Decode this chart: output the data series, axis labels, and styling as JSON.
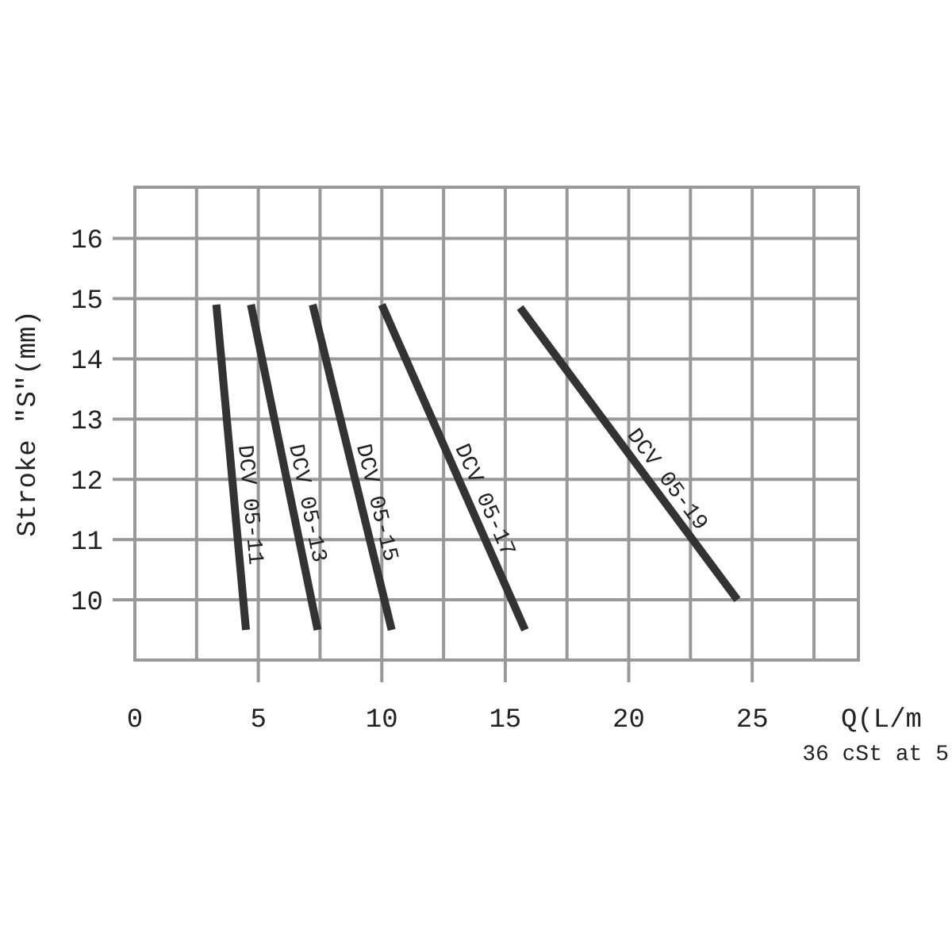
{
  "chart_data": {
    "type": "line",
    "xlabel": "Q(L/m",
    "ylabel": "Stroke \"S\"(mm)",
    "annotations": [
      "36 cSt at 5"
    ],
    "xlim": [
      0,
      29.3
    ],
    "ylim": [
      9,
      16.85
    ],
    "xticks": [
      0,
      {
        "value": 2.5,
        "label": null
      },
      5,
      {
        "value": 7.5,
        "label": null
      },
      10,
      {
        "value": 12.5,
        "label": null
      },
      15,
      {
        "value": 17.5,
        "label": null
      },
      20,
      {
        "value": 22.5,
        "label": null
      },
      25,
      {
        "value": 27.5,
        "label": null
      }
    ],
    "yticks": [
      10,
      11,
      12,
      13,
      14,
      15,
      16
    ],
    "grid": true,
    "marker": "none",
    "line_style": "solid",
    "series": [
      {
        "name": "DCV 05-11",
        "color": "#333333",
        "x": [
          3.3,
          4.5
        ],
        "values": [
          14.9,
          9.5
        ]
      },
      {
        "name": "DCV 05-13",
        "color": "#333333",
        "x": [
          4.7,
          7.4
        ],
        "values": [
          14.9,
          9.5
        ]
      },
      {
        "name": "DCV 05-15",
        "color": "#333333",
        "x": [
          7.2,
          10.4
        ],
        "values": [
          14.9,
          9.5
        ]
      },
      {
        "name": "DCV 05-17",
        "color": "#333333",
        "x": [
          10.0,
          15.8
        ],
        "values": [
          14.9,
          9.5
        ]
      },
      {
        "name": "DCV 05-19",
        "color": "#333333",
        "x": [
          15.6,
          24.4
        ],
        "values": [
          14.85,
          10.0
        ]
      }
    ]
  }
}
